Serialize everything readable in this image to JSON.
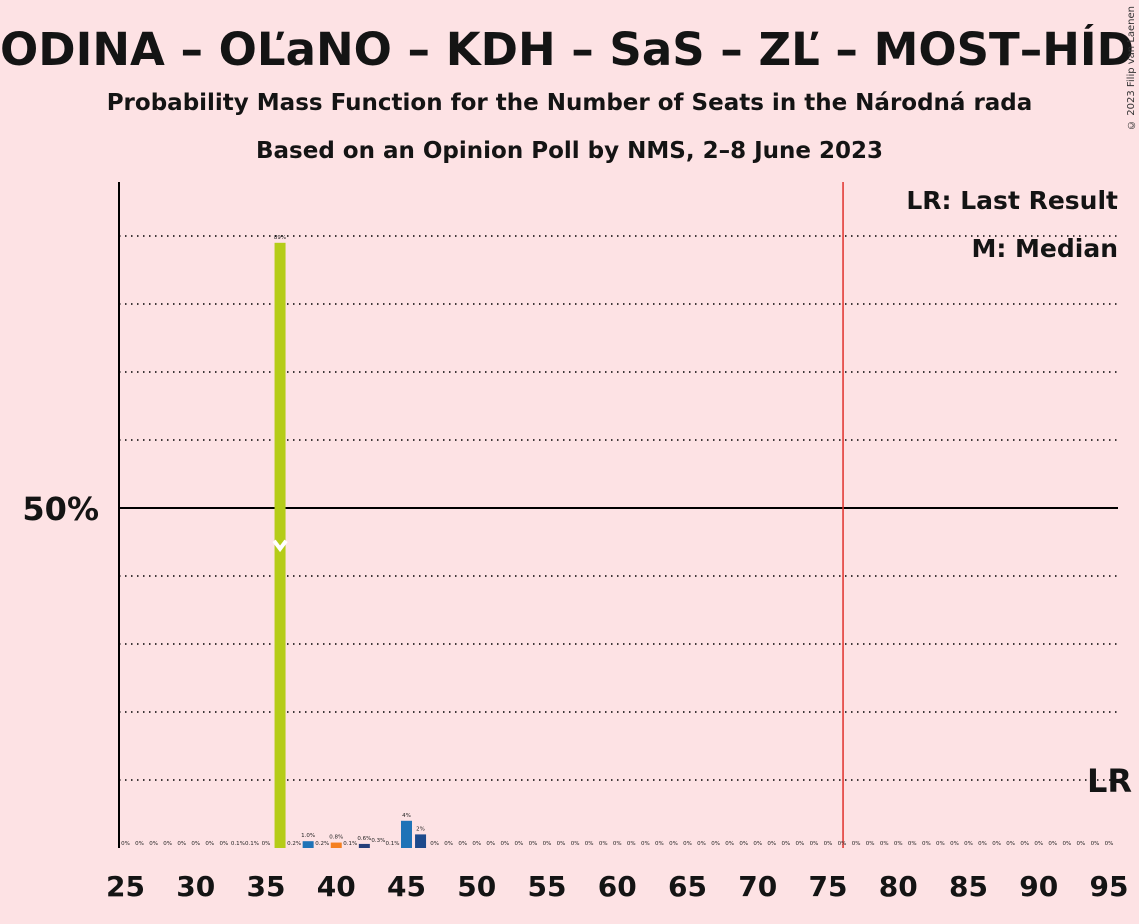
{
  "title": "ODINA – OĽaNO – KDH – SaS – ZĽ – MOST–HÍD – PS–",
  "subtitle": "Probability Mass Function for the Number of Seats in the Národná rada",
  "subtitle2": "Based on an Opinion Poll by NMS, 2–8 June 2023",
  "copyright": "© 2023 Filip van Laenen",
  "legend": {
    "last_result": "LR: Last Result",
    "median": "M: Median"
  },
  "colors": {
    "background": "#fde2e4",
    "majority_line": "#e0302a",
    "series": [
      "#b5cc18",
      "#1f73b7",
      "#f57f20",
      "#263f7a",
      "#1e4a8c"
    ]
  },
  "chart_data": {
    "type": "bar",
    "xlabel": "",
    "ylabel": "",
    "xlim": [
      25,
      95
    ],
    "ylim": [
      0,
      100
    ],
    "x_ticks": [
      "25",
      "30",
      "35",
      "40",
      "45",
      "50",
      "55",
      "60",
      "65",
      "70",
      "75",
      "80",
      "85",
      "90",
      "95"
    ],
    "y_tick_label": "50%",
    "y_tick_value": 50,
    "gridlines_dotted": [
      10,
      20,
      30,
      40,
      60,
      70,
      80,
      90
    ],
    "majority_seat": 76,
    "median_seat": 36,
    "median_value": 44,
    "last_result_label": "LR",
    "last_result_level": 10,
    "bars": [
      {
        "seat": 25,
        "value": 0,
        "label": "0%"
      },
      {
        "seat": 26,
        "value": 0,
        "label": "0%"
      },
      {
        "seat": 27,
        "value": 0,
        "label": "0%"
      },
      {
        "seat": 28,
        "value": 0,
        "label": "0%"
      },
      {
        "seat": 29,
        "value": 0,
        "label": "0%"
      },
      {
        "seat": 30,
        "value": 0,
        "label": "0%"
      },
      {
        "seat": 31,
        "value": 0,
        "label": "0%"
      },
      {
        "seat": 32,
        "value": 0,
        "label": "0%"
      },
      {
        "seat": 33,
        "value": 0.1,
        "label": "0.1%"
      },
      {
        "seat": 34,
        "value": 0.1,
        "label": "0.1%"
      },
      {
        "seat": 35,
        "value": 0,
        "label": "0%"
      },
      {
        "seat": 36,
        "value": 89,
        "label": "89%",
        "color": 0
      },
      {
        "seat": 37,
        "value": 0.2,
        "label": "0.2%"
      },
      {
        "seat": 38,
        "value": 1.0,
        "label": "1.0%",
        "color": 1
      },
      {
        "seat": 39,
        "value": 0.2,
        "label": "0.2%"
      },
      {
        "seat": 40,
        "value": 0.8,
        "label": "0.8%",
        "color": 2
      },
      {
        "seat": 41,
        "value": 0.1,
        "label": "0.1%"
      },
      {
        "seat": 42,
        "value": 0.6,
        "label": "0.6%",
        "color": 3
      },
      {
        "seat": 43,
        "value": 0.3,
        "label": "0.3%"
      },
      {
        "seat": 44,
        "value": 0.1,
        "label": "0.1%"
      },
      {
        "seat": 45,
        "value": 4,
        "label": "4%",
        "color": 1
      },
      {
        "seat": 46,
        "value": 2,
        "label": "2%",
        "color": 4
      },
      {
        "seat": 47,
        "value": 0,
        "label": "0%"
      },
      {
        "seat": 48,
        "value": 0,
        "label": "0%"
      },
      {
        "seat": 49,
        "value": 0,
        "label": "0%"
      },
      {
        "seat": 50,
        "value": 0,
        "label": "0%"
      },
      {
        "seat": 51,
        "value": 0,
        "label": "0%"
      },
      {
        "seat": 52,
        "value": 0,
        "label": "0%"
      },
      {
        "seat": 53,
        "value": 0,
        "label": "0%"
      },
      {
        "seat": 54,
        "value": 0,
        "label": "0%"
      },
      {
        "seat": 55,
        "value": 0,
        "label": "0%"
      },
      {
        "seat": 56,
        "value": 0,
        "label": "0%"
      },
      {
        "seat": 57,
        "value": 0,
        "label": "0%"
      },
      {
        "seat": 58,
        "value": 0,
        "label": "0%"
      },
      {
        "seat": 59,
        "value": 0,
        "label": "0%"
      },
      {
        "seat": 60,
        "value": 0,
        "label": "0%"
      },
      {
        "seat": 61,
        "value": 0,
        "label": "0%"
      },
      {
        "seat": 62,
        "value": 0,
        "label": "0%"
      },
      {
        "seat": 63,
        "value": 0,
        "label": "0%"
      },
      {
        "seat": 64,
        "value": 0,
        "label": "0%"
      },
      {
        "seat": 65,
        "value": 0,
        "label": "0%"
      },
      {
        "seat": 66,
        "value": 0,
        "label": "0%"
      },
      {
        "seat": 67,
        "value": 0,
        "label": "0%"
      },
      {
        "seat": 68,
        "value": 0,
        "label": "0%"
      },
      {
        "seat": 69,
        "value": 0,
        "label": "0%"
      },
      {
        "seat": 70,
        "value": 0,
        "label": "0%"
      },
      {
        "seat": 71,
        "value": 0,
        "label": "0%"
      },
      {
        "seat": 72,
        "value": 0,
        "label": "0%"
      },
      {
        "seat": 73,
        "value": 0,
        "label": "0%"
      },
      {
        "seat": 74,
        "value": 0,
        "label": "0%"
      },
      {
        "seat": 75,
        "value": 0,
        "label": "0%"
      },
      {
        "seat": 76,
        "value": 0,
        "label": "0%"
      },
      {
        "seat": 77,
        "value": 0,
        "label": "0%"
      },
      {
        "seat": 78,
        "value": 0,
        "label": "0%"
      },
      {
        "seat": 79,
        "value": 0,
        "label": "0%"
      },
      {
        "seat": 80,
        "value": 0,
        "label": "0%"
      },
      {
        "seat": 81,
        "value": 0,
        "label": "0%"
      },
      {
        "seat": 82,
        "value": 0,
        "label": "0%"
      },
      {
        "seat": 83,
        "value": 0,
        "label": "0%"
      },
      {
        "seat": 84,
        "value": 0,
        "label": "0%"
      },
      {
        "seat": 85,
        "value": 0,
        "label": "0%"
      },
      {
        "seat": 86,
        "value": 0,
        "label": "0%"
      },
      {
        "seat": 87,
        "value": 0,
        "label": "0%"
      },
      {
        "seat": 88,
        "value": 0,
        "label": "0%"
      },
      {
        "seat": 89,
        "value": 0,
        "label": "0%"
      },
      {
        "seat": 90,
        "value": 0,
        "label": "0%"
      },
      {
        "seat": 91,
        "value": 0,
        "label": "0%"
      },
      {
        "seat": 92,
        "value": 0,
        "label": "0%"
      },
      {
        "seat": 93,
        "value": 0,
        "label": "0%"
      },
      {
        "seat": 94,
        "value": 0,
        "label": "0%"
      },
      {
        "seat": 95,
        "value": 0,
        "label": "0%"
      }
    ]
  }
}
